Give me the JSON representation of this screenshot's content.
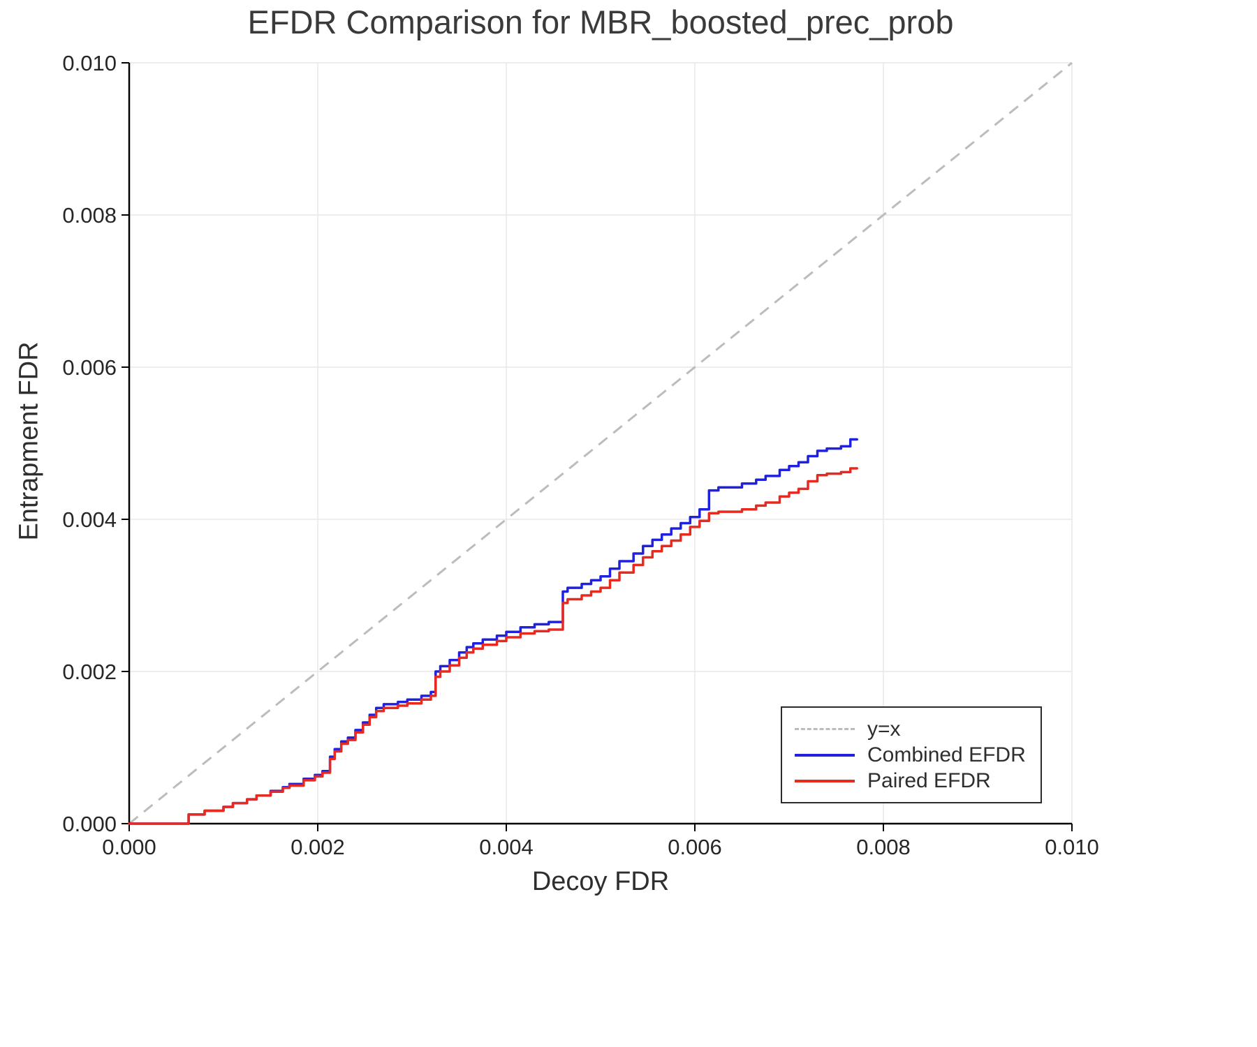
{
  "page": {
    "background": "#ffffff"
  },
  "chart_data": {
    "type": "line",
    "title": "EFDR Comparison for MBR_boosted_prec_prob",
    "xlabel": "Decoy FDR",
    "ylabel": "Entrapment FDR",
    "xlim": [
      0.0,
      0.01
    ],
    "ylim": [
      0.0,
      0.01
    ],
    "x_ticks": [
      0.0,
      0.002,
      0.004,
      0.006,
      0.008,
      0.01
    ],
    "x_tick_labels": [
      "0.000",
      "0.002",
      "0.004",
      "0.006",
      "0.008",
      "0.010"
    ],
    "y_ticks": [
      0.0,
      0.002,
      0.004,
      0.006,
      0.008,
      0.01
    ],
    "y_tick_labels": [
      "0.000",
      "0.002",
      "0.004",
      "0.006",
      "0.008",
      "0.010"
    ],
    "grid": true,
    "step_mode": "after",
    "reference_line": {
      "label": "y=x",
      "from": [
        0.0,
        0.0
      ],
      "to": [
        0.01,
        0.01
      ],
      "style": "dashed",
      "color": "#bcbcbc"
    },
    "series": [
      {
        "name": "Combined EFDR",
        "color": "#2020df",
        "points": [
          [
            0.0,
            0.0
          ],
          [
            0.00063,
            0.00012
          ],
          [
            0.0008,
            0.00017
          ],
          [
            0.001,
            0.00022
          ],
          [
            0.0011,
            0.00027
          ],
          [
            0.00125,
            0.00032
          ],
          [
            0.00135,
            0.00037
          ],
          [
            0.0015,
            0.00043
          ],
          [
            0.00163,
            0.00048
          ],
          [
            0.0017,
            0.00052
          ],
          [
            0.00185,
            0.00059
          ],
          [
            0.00197,
            0.00064
          ],
          [
            0.00205,
            0.00069
          ],
          [
            0.00213,
            0.00088
          ],
          [
            0.00218,
            0.00098
          ],
          [
            0.00225,
            0.00108
          ],
          [
            0.00232,
            0.00113
          ],
          [
            0.0024,
            0.00123
          ],
          [
            0.00248,
            0.00133
          ],
          [
            0.00255,
            0.00143
          ],
          [
            0.00262,
            0.00152
          ],
          [
            0.0027,
            0.00157
          ],
          [
            0.00285,
            0.0016
          ],
          [
            0.00295,
            0.00163
          ],
          [
            0.0031,
            0.00168
          ],
          [
            0.0032,
            0.00173
          ],
          [
            0.00325,
            0.002
          ],
          [
            0.0033,
            0.00207
          ],
          [
            0.0034,
            0.00215
          ],
          [
            0.0035,
            0.00225
          ],
          [
            0.00358,
            0.00232
          ],
          [
            0.00365,
            0.00237
          ],
          [
            0.00375,
            0.00242
          ],
          [
            0.0039,
            0.00247
          ],
          [
            0.004,
            0.00252
          ],
          [
            0.00415,
            0.00258
          ],
          [
            0.0043,
            0.00262
          ],
          [
            0.00445,
            0.00265
          ],
          [
            0.0046,
            0.00305
          ],
          [
            0.00465,
            0.0031
          ],
          [
            0.0048,
            0.00315
          ],
          [
            0.0049,
            0.0032
          ],
          [
            0.005,
            0.00325
          ],
          [
            0.0051,
            0.00335
          ],
          [
            0.0052,
            0.00345
          ],
          [
            0.00535,
            0.00355
          ],
          [
            0.00545,
            0.00365
          ],
          [
            0.00555,
            0.00373
          ],
          [
            0.00565,
            0.0038
          ],
          [
            0.00575,
            0.00388
          ],
          [
            0.00585,
            0.00395
          ],
          [
            0.00595,
            0.00403
          ],
          [
            0.00605,
            0.00413
          ],
          [
            0.00615,
            0.00438
          ],
          [
            0.00625,
            0.00442
          ],
          [
            0.0065,
            0.00447
          ],
          [
            0.00665,
            0.00452
          ],
          [
            0.00675,
            0.00457
          ],
          [
            0.0069,
            0.00465
          ],
          [
            0.007,
            0.0047
          ],
          [
            0.0071,
            0.00475
          ],
          [
            0.0072,
            0.00483
          ],
          [
            0.0073,
            0.0049
          ],
          [
            0.0074,
            0.00493
          ],
          [
            0.00755,
            0.00496
          ],
          [
            0.00765,
            0.00505
          ],
          [
            0.00772,
            0.00505
          ]
        ]
      },
      {
        "name": "Paired EFDR",
        "color": "#e8291f",
        "points": [
          [
            0.0,
            0.0
          ],
          [
            0.00063,
            0.00012
          ],
          [
            0.0008,
            0.00017
          ],
          [
            0.001,
            0.00022
          ],
          [
            0.0011,
            0.00027
          ],
          [
            0.00125,
            0.00032
          ],
          [
            0.00135,
            0.00037
          ],
          [
            0.0015,
            0.00042
          ],
          [
            0.00163,
            0.00047
          ],
          [
            0.0017,
            0.0005
          ],
          [
            0.00185,
            0.00057
          ],
          [
            0.00197,
            0.00062
          ],
          [
            0.00205,
            0.00067
          ],
          [
            0.00213,
            0.00085
          ],
          [
            0.00218,
            0.00095
          ],
          [
            0.00225,
            0.00105
          ],
          [
            0.00232,
            0.0011
          ],
          [
            0.0024,
            0.0012
          ],
          [
            0.00248,
            0.0013
          ],
          [
            0.00255,
            0.0014
          ],
          [
            0.00262,
            0.00148
          ],
          [
            0.0027,
            0.00152
          ],
          [
            0.00285,
            0.00155
          ],
          [
            0.00295,
            0.00158
          ],
          [
            0.0031,
            0.00163
          ],
          [
            0.0032,
            0.00168
          ],
          [
            0.00325,
            0.00193
          ],
          [
            0.0033,
            0.002
          ],
          [
            0.0034,
            0.00208
          ],
          [
            0.0035,
            0.00218
          ],
          [
            0.00358,
            0.00225
          ],
          [
            0.00365,
            0.0023
          ],
          [
            0.00375,
            0.00235
          ],
          [
            0.0039,
            0.0024
          ],
          [
            0.004,
            0.00245
          ],
          [
            0.00415,
            0.0025
          ],
          [
            0.0043,
            0.00253
          ],
          [
            0.00445,
            0.00255
          ],
          [
            0.0046,
            0.0029
          ],
          [
            0.00465,
            0.00295
          ],
          [
            0.0048,
            0.003
          ],
          [
            0.0049,
            0.00305
          ],
          [
            0.005,
            0.0031
          ],
          [
            0.0051,
            0.0032
          ],
          [
            0.0052,
            0.0033
          ],
          [
            0.00535,
            0.0034
          ],
          [
            0.00545,
            0.0035
          ],
          [
            0.00555,
            0.00358
          ],
          [
            0.00565,
            0.00365
          ],
          [
            0.00575,
            0.00372
          ],
          [
            0.00585,
            0.0038
          ],
          [
            0.00595,
            0.0039
          ],
          [
            0.00605,
            0.00398
          ],
          [
            0.00615,
            0.00408
          ],
          [
            0.00625,
            0.0041
          ],
          [
            0.0065,
            0.00413
          ],
          [
            0.00665,
            0.00418
          ],
          [
            0.00675,
            0.00422
          ],
          [
            0.0069,
            0.0043
          ],
          [
            0.007,
            0.00435
          ],
          [
            0.0071,
            0.0044
          ],
          [
            0.0072,
            0.0045
          ],
          [
            0.0073,
            0.00458
          ],
          [
            0.0074,
            0.0046
          ],
          [
            0.00755,
            0.00462
          ],
          [
            0.00765,
            0.00467
          ],
          [
            0.00772,
            0.00467
          ]
        ]
      }
    ],
    "legend": {
      "position": "lower-right",
      "entries": [
        {
          "label": "y=x",
          "color": "#bcbcbc",
          "dash": true,
          "sample_icon": "dashed-line-sample"
        },
        {
          "label": "Combined EFDR",
          "color": "#2020df",
          "dash": false,
          "sample_icon": "blue-line-sample"
        },
        {
          "label": "Paired EFDR",
          "color": "#e8291f",
          "dash": false,
          "sample_icon": "red-line-sample"
        }
      ]
    },
    "colors": {
      "grid": "#e7e7e7",
      "spine": "#000000",
      "tick_text": "#262626",
      "title_text": "#3a3a3a"
    }
  }
}
